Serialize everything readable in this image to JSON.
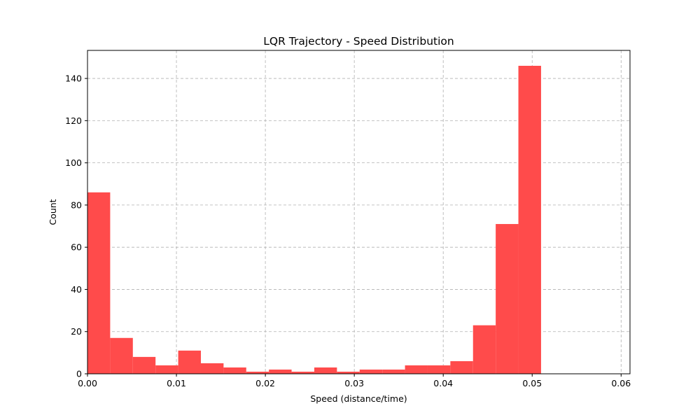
{
  "chart_data": {
    "type": "bar",
    "title": "LQR Trajectory - Speed Distribution",
    "xlabel": "Speed (distance/time)",
    "ylabel": "Count",
    "xlim": [
      0,
      0.061
    ],
    "ylim": [
      0,
      153.3
    ],
    "grid": true,
    "bar_color": "#ff4b4b",
    "x_ticks": [
      {
        "value": 0.0,
        "label": "0.00"
      },
      {
        "value": 0.01,
        "label": "0.01"
      },
      {
        "value": 0.02,
        "label": "0.02"
      },
      {
        "value": 0.03,
        "label": "0.03"
      },
      {
        "value": 0.04,
        "label": "0.04"
      },
      {
        "value": 0.05,
        "label": "0.05"
      },
      {
        "value": 0.06,
        "label": "0.06"
      }
    ],
    "y_ticks": [
      {
        "value": 0,
        "label": "0"
      },
      {
        "value": 20,
        "label": "20"
      },
      {
        "value": 40,
        "label": "40"
      },
      {
        "value": 60,
        "label": "60"
      },
      {
        "value": 80,
        "label": "80"
      },
      {
        "value": 100,
        "label": "100"
      },
      {
        "value": 120,
        "label": "120"
      },
      {
        "value": 140,
        "label": "140"
      }
    ],
    "bin_edges": [
      0.0,
      0.00255,
      0.0051,
      0.00765,
      0.0102,
      0.01275,
      0.0153,
      0.01785,
      0.0204,
      0.02295,
      0.0255,
      0.02805,
      0.0306,
      0.03315,
      0.0357,
      0.03825,
      0.0408,
      0.04335,
      0.0459,
      0.04845,
      0.051
    ],
    "counts": [
      86,
      17,
      8,
      4,
      11,
      5,
      3,
      1,
      2,
      1,
      3,
      1,
      2,
      2,
      4,
      4,
      6,
      23,
      71,
      146
    ]
  }
}
